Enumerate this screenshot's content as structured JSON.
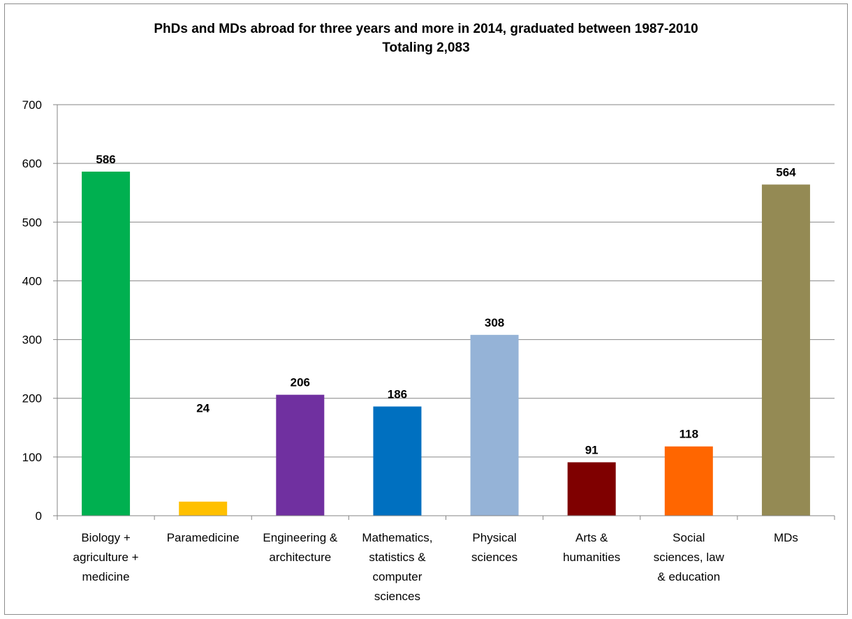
{
  "chart_data": {
    "type": "bar",
    "title": "PhDs and MDs abroad for three years and more in 2014, graduated between 1987-2010",
    "subtitle": "Totaling 2,083",
    "xlabel": "",
    "ylabel": "",
    "ylim": [
      0,
      700
    ],
    "yticks": [
      "0",
      "100",
      "200",
      "300",
      "400",
      "500",
      "600",
      "700"
    ],
    "grid": true,
    "legend": "none",
    "categories": [
      [
        "Biology +",
        "agriculture +",
        "medicine"
      ],
      [
        "Paramedicine"
      ],
      [
        "Engineering &",
        "architecture"
      ],
      [
        "Mathematics,",
        "statistics &",
        "computer",
        "sciences"
      ],
      [
        "Physical",
        "sciences"
      ],
      [
        "Arts &",
        "humanities"
      ],
      [
        "Social",
        "sciences, law",
        "& education"
      ],
      [
        "MDs"
      ]
    ],
    "values": [
      586,
      24,
      206,
      186,
      308,
      91,
      118,
      564
    ],
    "data_labels": [
      "586",
      "24",
      "206",
      "186",
      "308",
      "91",
      "118",
      "564"
    ],
    "colors": [
      "#00b050",
      "#ffc000",
      "#7030a0",
      "#0070c0",
      "#95b3d7",
      "#7f0000",
      "#ff6600",
      "#948a54"
    ]
  }
}
